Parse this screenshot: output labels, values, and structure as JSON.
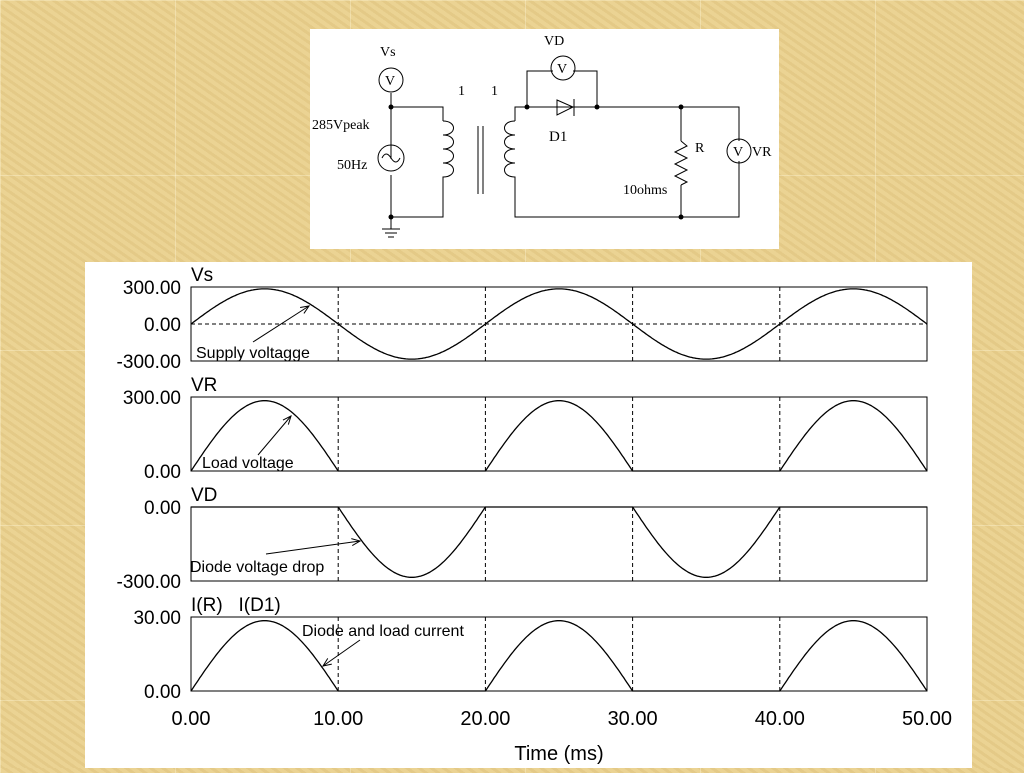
{
  "circuit": {
    "source_meter": "Vs",
    "meter_symbol": "V",
    "source_amplitude": "285Vpeak",
    "source_frequency": "50Hz",
    "turns_primary": "1",
    "turns_secondary": "1",
    "diode_meter": "VD",
    "diode": "D1",
    "resistor": "R",
    "resistor_value": "10ohms",
    "load_meter": "VR"
  },
  "chart_data": [
    {
      "type": "line",
      "title": "Vs",
      "ylim": [
        -300,
        300
      ],
      "yticks": [
        "300.00",
        "0.00",
        "-300.00"
      ],
      "xlim": [
        0,
        50
      ],
      "series": [
        {
          "waveform": "sine",
          "peak": 285,
          "frequency_hz": 50
        }
      ],
      "annotation": "Supply voltagge",
      "grid": "dashed at 10 ms and y=0"
    },
    {
      "type": "line",
      "title": "VR",
      "ylim": [
        0,
        300
      ],
      "yticks": [
        "300.00",
        "0.00"
      ],
      "xlim": [
        0,
        50
      ],
      "series": [
        {
          "waveform": "half-wave positive",
          "peak": 285,
          "frequency_hz": 50
        }
      ],
      "annotation": "Load voltage"
    },
    {
      "type": "line",
      "title": "VD",
      "ylim": [
        -300,
        0
      ],
      "yticks": [
        "0.00",
        "-300.00"
      ],
      "xlim": [
        0,
        50
      ],
      "series": [
        {
          "waveform": "half-wave negative",
          "peak": 285,
          "frequency_hz": 50
        }
      ],
      "annotation": "Diode voltage drop"
    },
    {
      "type": "line",
      "title": "I(R)   I(D1)",
      "ylim": [
        0,
        30
      ],
      "yticks": [
        "30.00",
        "0.00"
      ],
      "xlim": [
        0,
        50
      ],
      "series": [
        {
          "waveform": "half-wave positive",
          "peak": 28.5,
          "frequency_hz": 50
        }
      ],
      "annotation": "Diode and load current"
    }
  ],
  "xaxis": {
    "label": "Time (ms)",
    "ticks": [
      "0.00",
      "10.00",
      "20.00",
      "30.00",
      "40.00",
      "50.00"
    ]
  }
}
